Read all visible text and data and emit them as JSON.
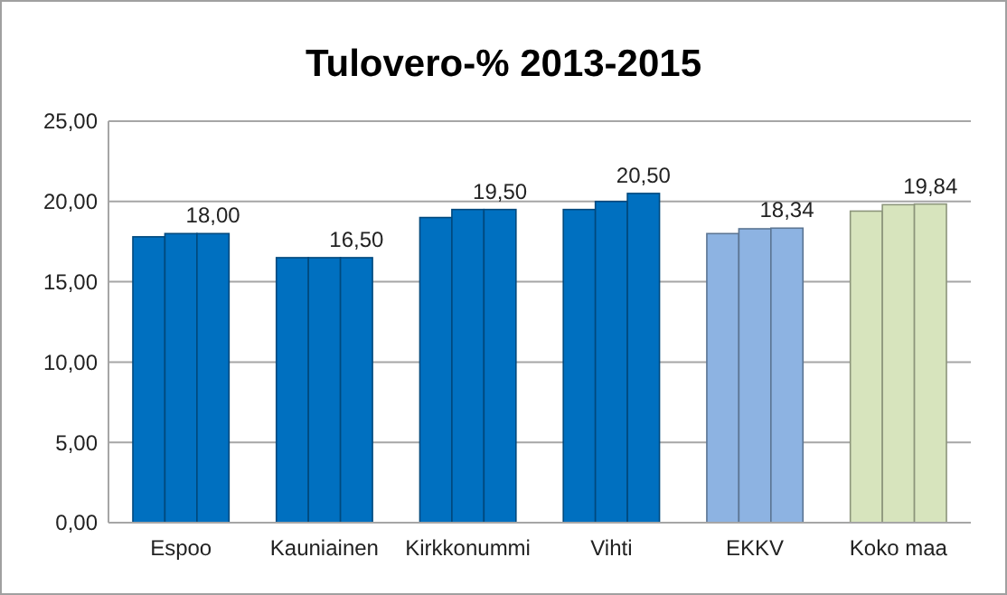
{
  "chart_data": {
    "type": "bar",
    "title": "Tulovero-% 2013-2015",
    "categories": [
      "Espoo",
      "Kauniainen",
      "Kirkkonummi",
      "Vihti",
      "EKKV",
      "Koko maa"
    ],
    "series": [
      {
        "colors": [
          "#0070c0",
          "#0070c0",
          "#0070c0",
          "#0070c0",
          "#8db3e2",
          "#d7e4bd"
        ],
        "values": [
          17.8,
          16.5,
          19.0,
          19.5,
          18.0,
          19.4
        ]
      },
      {
        "colors": [
          "#0070c0",
          "#0070c0",
          "#0070c0",
          "#0070c0",
          "#8db3e2",
          "#d7e4bd"
        ],
        "values": [
          18.0,
          16.5,
          19.5,
          20.0,
          18.3,
          19.8
        ]
      },
      {
        "colors": [
          "#0070c0",
          "#0070c0",
          "#0070c0",
          "#0070c0",
          "#8db3e2",
          "#d7e4bd"
        ],
        "values": [
          18.0,
          16.5,
          19.5,
          20.5,
          18.34,
          19.84
        ],
        "value_labels": [
          "18,00",
          "16,50",
          "19,50",
          "20,50",
          "18,34",
          "19,84"
        ]
      }
    ],
    "ylim": [
      0,
      25
    ],
    "yticks": [
      {
        "value": 0,
        "label": "0,00"
      },
      {
        "value": 5,
        "label": "5,00"
      },
      {
        "value": 10,
        "label": "10,00"
      },
      {
        "value": 15,
        "label": "15,00"
      },
      {
        "value": 20,
        "label": "20,00"
      },
      {
        "value": 25,
        "label": "25,00"
      }
    ],
    "grid": "y"
  }
}
